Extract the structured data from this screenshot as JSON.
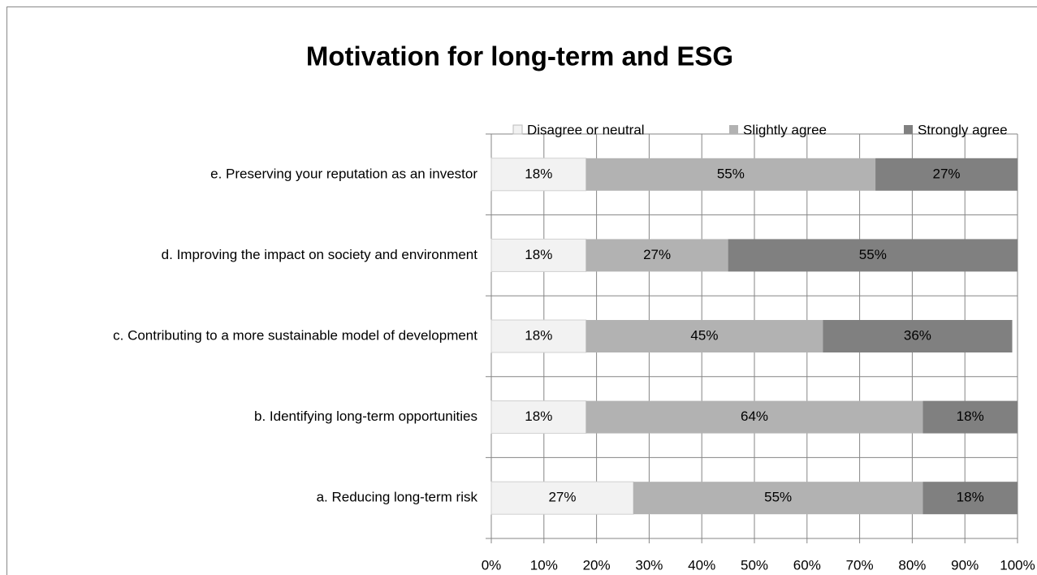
{
  "chart_data": {
    "type": "bar",
    "orientation": "horizontal",
    "stacked": true,
    "title": "Motivation for long-term and ESG",
    "categories": [
      "e. Preserving your reputation as an investor",
      "d. Improving the impact on society and environment",
      "c. Contributing to a more sustainable model of development",
      "b. Identifying long-term opportunities",
      "a. Reducing long-term risk"
    ],
    "series": [
      {
        "name": "Disagree or neutral",
        "color": "#f2f2f2",
        "values": [
          18,
          18,
          18,
          18,
          27
        ],
        "value_labels": [
          "18%",
          "18%",
          "18%",
          "18%",
          "27%"
        ]
      },
      {
        "name": "Slightly agree",
        "color": "#b2b2b2",
        "values": [
          55,
          27,
          45,
          64,
          55
        ],
        "value_labels": [
          "55%",
          "27%",
          "45%",
          "64%",
          "55%"
        ]
      },
      {
        "name": "Strongly agree",
        "color": "#808080",
        "values": [
          27,
          55,
          36,
          18,
          18
        ],
        "value_labels": [
          "27%",
          "55%",
          "36%",
          "18%",
          "18%"
        ]
      }
    ],
    "xlim": [
      0,
      100
    ],
    "xticks": [
      {
        "value": 0,
        "label": "0%"
      },
      {
        "value": 10,
        "label": "10%"
      },
      {
        "value": 20,
        "label": "20%"
      },
      {
        "value": 30,
        "label": "30%"
      },
      {
        "value": 40,
        "label": "40%"
      },
      {
        "value": 50,
        "label": "50%"
      },
      {
        "value": 60,
        "label": "60%"
      },
      {
        "value": 70,
        "label": "70%"
      },
      {
        "value": 80,
        "label": "80%"
      },
      {
        "value": 90,
        "label": "90%"
      },
      {
        "value": 100,
        "label": "100%"
      }
    ],
    "grid": true,
    "legend": "top"
  }
}
